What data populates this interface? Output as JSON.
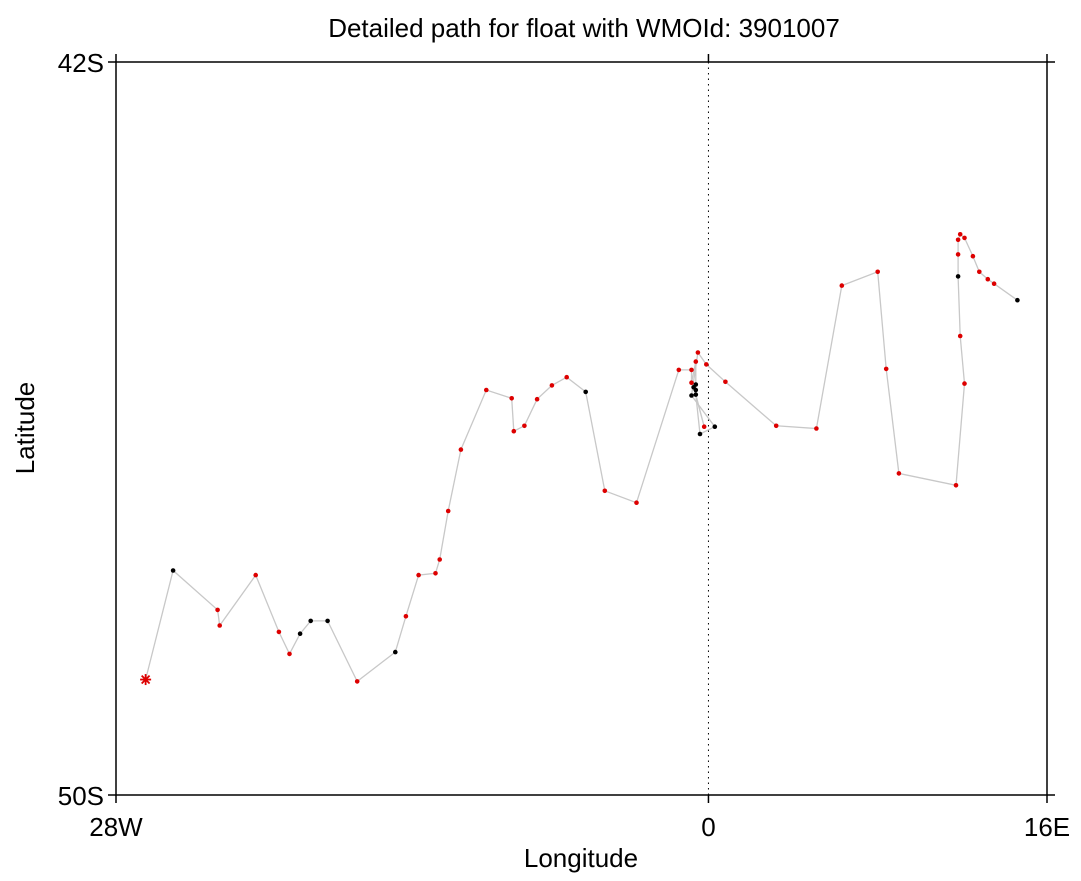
{
  "chart_data": {
    "type": "scatter",
    "title": "Detailed path for float with WMOId: 3901007",
    "xlabel": "Longitude",
    "ylabel": "Latitude",
    "xlim": [
      -28,
      16
    ],
    "ylim": [
      -50,
      -42
    ],
    "x_ticks": [
      {
        "value": -28,
        "label": "28W"
      },
      {
        "value": 0,
        "label": "0"
      },
      {
        "value": 16,
        "label": "16E"
      }
    ],
    "y_ticks": [
      {
        "value": -42,
        "label": "42S"
      },
      {
        "value": -50,
        "label": "50S"
      }
    ],
    "reference_line": {
      "x": 0,
      "style": "dotted"
    },
    "grid": false,
    "legend": "none",
    "colors": {
      "path": "#c8c8c8",
      "qc_good": "#dd0000",
      "qc_other": "#000000",
      "start_marker": "#dd0000",
      "axes": "#000000"
    },
    "start": {
      "x": -26.6,
      "y": -48.74
    },
    "points": [
      {
        "x": -25.3,
        "y": -47.55,
        "c": "k"
      },
      {
        "x": -23.2,
        "y": -47.98,
        "c": "r"
      },
      {
        "x": -23.1,
        "y": -48.15,
        "c": "r"
      },
      {
        "x": -21.4,
        "y": -47.6,
        "c": "r"
      },
      {
        "x": -20.3,
        "y": -48.22,
        "c": "r"
      },
      {
        "x": -19.8,
        "y": -48.46,
        "c": "r"
      },
      {
        "x": -19.3,
        "y": -48.24,
        "c": "k"
      },
      {
        "x": -18.8,
        "y": -48.1,
        "c": "k"
      },
      {
        "x": -18.0,
        "y": -48.1,
        "c": "k"
      },
      {
        "x": -16.6,
        "y": -48.76,
        "c": "r"
      },
      {
        "x": -14.8,
        "y": -48.44,
        "c": "k"
      },
      {
        "x": -14.3,
        "y": -48.05,
        "c": "r"
      },
      {
        "x": -13.7,
        "y": -47.6,
        "c": "r"
      },
      {
        "x": -12.9,
        "y": -47.58,
        "c": "r"
      },
      {
        "x": -12.7,
        "y": -47.43,
        "c": "r"
      },
      {
        "x": -12.3,
        "y": -46.9,
        "c": "r"
      },
      {
        "x": -11.7,
        "y": -46.23,
        "c": "r"
      },
      {
        "x": -10.5,
        "y": -45.58,
        "c": "r"
      },
      {
        "x": -9.3,
        "y": -45.67,
        "c": "r"
      },
      {
        "x": -9.2,
        "y": -46.03,
        "c": "r"
      },
      {
        "x": -8.7,
        "y": -45.97,
        "c": "r"
      },
      {
        "x": -8.1,
        "y": -45.68,
        "c": "r"
      },
      {
        "x": -7.4,
        "y": -45.53,
        "c": "r"
      },
      {
        "x": -6.7,
        "y": -45.44,
        "c": "r"
      },
      {
        "x": -5.8,
        "y": -45.6,
        "c": "k"
      },
      {
        "x": -4.9,
        "y": -46.68,
        "c": "r"
      },
      {
        "x": -3.4,
        "y": -46.81,
        "c": "r"
      },
      {
        "x": -1.4,
        "y": -45.36,
        "c": "r"
      },
      {
        "x": -0.8,
        "y": -45.36,
        "c": "r"
      },
      {
        "x": -0.8,
        "y": -45.5,
        "c": "r"
      },
      {
        "x": -0.6,
        "y": -45.27,
        "c": "r"
      },
      {
        "x": -0.6,
        "y": -45.58,
        "c": "k"
      },
      {
        "x": -0.6,
        "y": -45.52,
        "c": "k"
      },
      {
        "x": -0.7,
        "y": -45.55,
        "c": "k"
      },
      {
        "x": -0.2,
        "y": -45.98,
        "c": "r"
      },
      {
        "x": -0.6,
        "y": -45.63,
        "c": "k"
      },
      {
        "x": -0.4,
        "y": -46.06,
        "c": "k"
      },
      {
        "x": 0.3,
        "y": -45.98,
        "c": "k"
      },
      {
        "x": -0.8,
        "y": -45.64,
        "c": "k"
      },
      {
        "x": -0.5,
        "y": -45.17,
        "c": "r"
      },
      {
        "x": -0.1,
        "y": -45.3,
        "c": "r"
      },
      {
        "x": 0.8,
        "y": -45.49,
        "c": "r"
      },
      {
        "x": 3.2,
        "y": -45.97,
        "c": "r"
      },
      {
        "x": 5.1,
        "y": -46.0,
        "c": "r"
      },
      {
        "x": 6.3,
        "y": -44.44,
        "c": "r"
      },
      {
        "x": 8.0,
        "y": -44.29,
        "c": "r"
      },
      {
        "x": 8.4,
        "y": -45.35,
        "c": "r"
      },
      {
        "x": 9.0,
        "y": -46.49,
        "c": "r"
      },
      {
        "x": 11.7,
        "y": -46.62,
        "c": "r"
      },
      {
        "x": 12.1,
        "y": -45.51,
        "c": "r"
      },
      {
        "x": 11.9,
        "y": -44.99,
        "c": "r"
      },
      {
        "x": 11.8,
        "y": -44.34,
        "c": "k"
      },
      {
        "x": 11.8,
        "y": -44.1,
        "c": "r"
      },
      {
        "x": 11.8,
        "y": -43.94,
        "c": "r"
      },
      {
        "x": 11.9,
        "y": -43.88,
        "c": "r"
      },
      {
        "x": 12.1,
        "y": -43.92,
        "c": "r"
      },
      {
        "x": 12.5,
        "y": -44.12,
        "c": "r"
      },
      {
        "x": 12.8,
        "y": -44.29,
        "c": "r"
      },
      {
        "x": 13.2,
        "y": -44.37,
        "c": "r"
      },
      {
        "x": 13.5,
        "y": -44.42,
        "c": "r"
      },
      {
        "x": 14.6,
        "y": -44.6,
        "c": "k"
      }
    ]
  }
}
